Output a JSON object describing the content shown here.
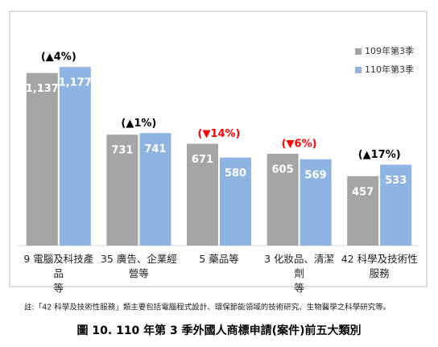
{
  "chart_data": {
    "type": "bar",
    "categories": [
      "9 電腦及科技產品\n等",
      "35 廣告、企業經\n營等",
      "5 藥品等",
      "3 化妝品、清潔劑\n等",
      "42 科學及技術性\n服務"
    ],
    "series": [
      {
        "name": "109年第3季",
        "color": "#a5a5a5",
        "values": [
          1137,
          731,
          671,
          605,
          457
        ],
        "value_labels": [
          "1,137",
          "731",
          "671",
          "605",
          "457"
        ]
      },
      {
        "name": "110年第3季",
        "color": "#8eb4e3",
        "values": [
          1177,
          741,
          580,
          569,
          533
        ],
        "value_labels": [
          "1,177",
          "741",
          "580",
          "569",
          "533"
        ]
      }
    ],
    "annotations": [
      {
        "text": "(▲4%)",
        "color": "#000000"
      },
      {
        "text": "(▲1%)",
        "color": "#000000"
      },
      {
        "text": "(▼14%)",
        "color": "#ff0000"
      },
      {
        "text": "(▼6%)",
        "color": "#ff0000"
      },
      {
        "text": "(▲17%)",
        "color": "#000000"
      }
    ],
    "ylim": [
      0,
      1300
    ],
    "legend": "upper right",
    "note": "註:「42 科學及技術性服務」類主要包括電腦程式設計、環保節能領域的技術研究、生物醫學之科學研究等。",
    "caption": "圖 10. 110 年第 3 季外國人商標申請(案件)前五大類別"
  }
}
